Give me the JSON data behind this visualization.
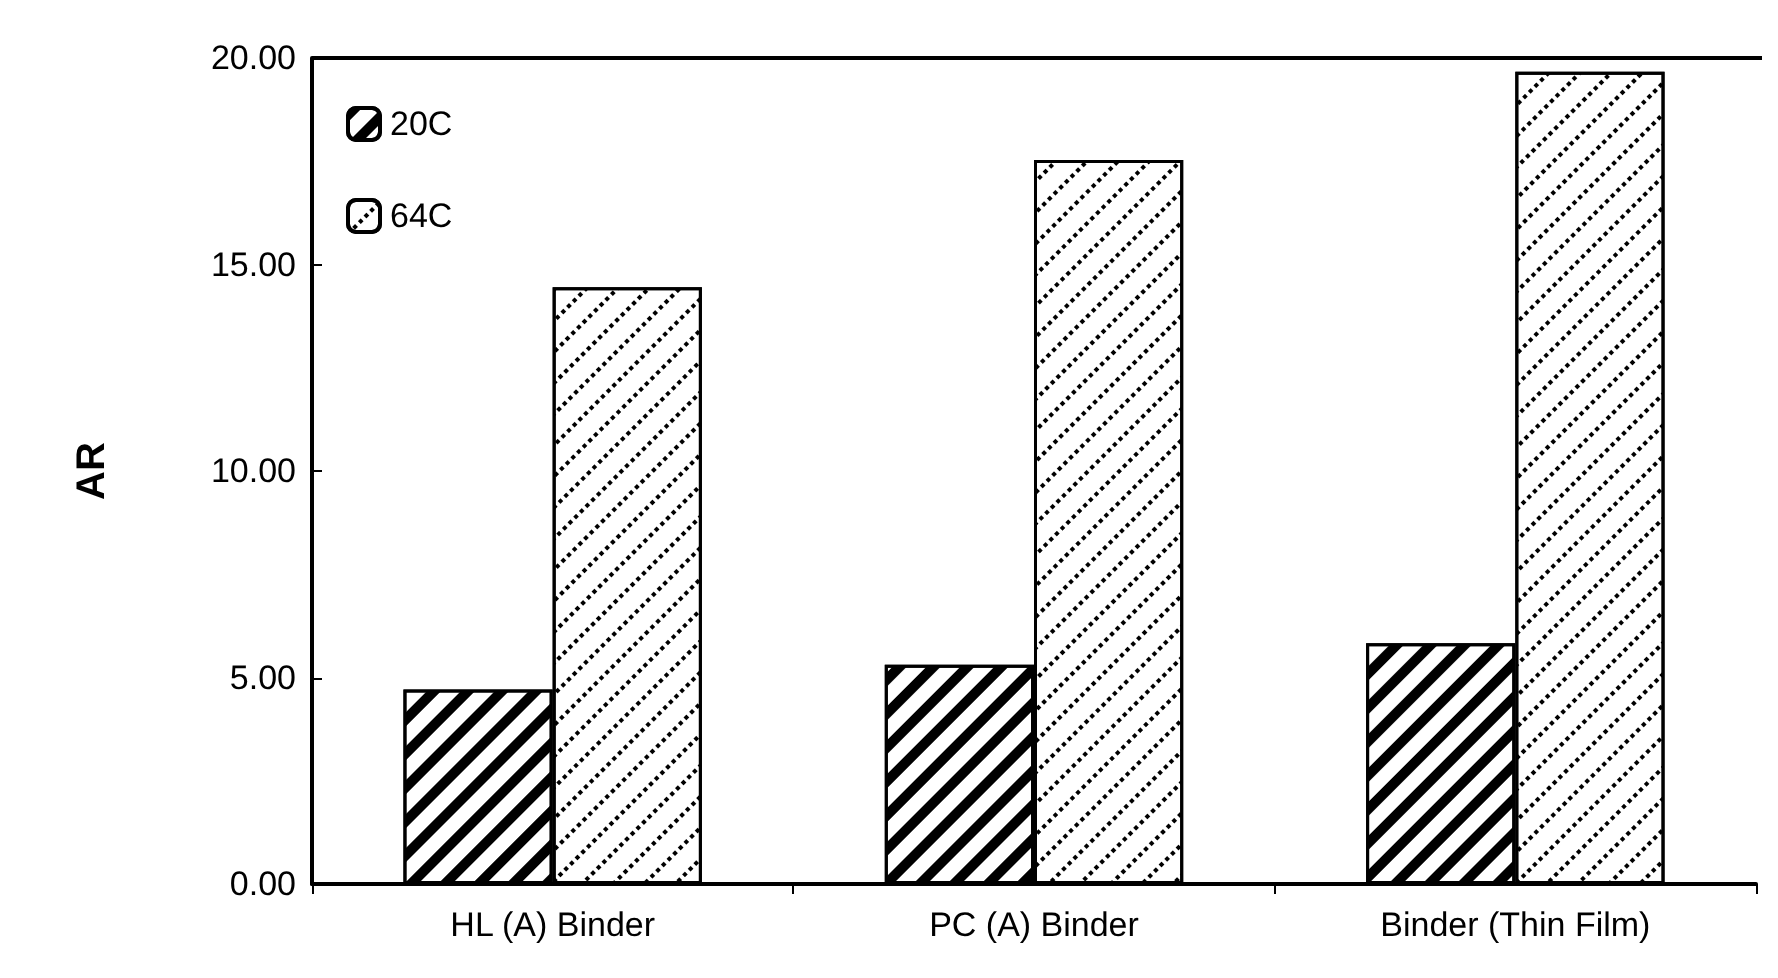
{
  "chart_data": {
    "type": "bar",
    "ylabel": "AR",
    "categories": [
      "HL (A) Binder",
      "PC (A) Binder",
      "Binder (Thin Film)"
    ],
    "series": [
      {
        "name": "20C",
        "color": "#000000",
        "values": [
          4.71,
          5.31,
          5.83
        ]
      },
      {
        "name": "64C",
        "color": "#000000",
        "values": [
          14.45,
          17.53,
          19.67
        ]
      }
    ],
    "ylim": [
      0,
      20
    ],
    "yticks": [
      {
        "value": 0,
        "label": "0.00"
      },
      {
        "value": 5,
        "label": "5.00"
      },
      {
        "value": 10,
        "label": "10.00"
      },
      {
        "value": 15,
        "label": "15.00"
      },
      {
        "value": 20,
        "label": "20.00"
      }
    ],
    "grid": false,
    "legend": "top left"
  }
}
